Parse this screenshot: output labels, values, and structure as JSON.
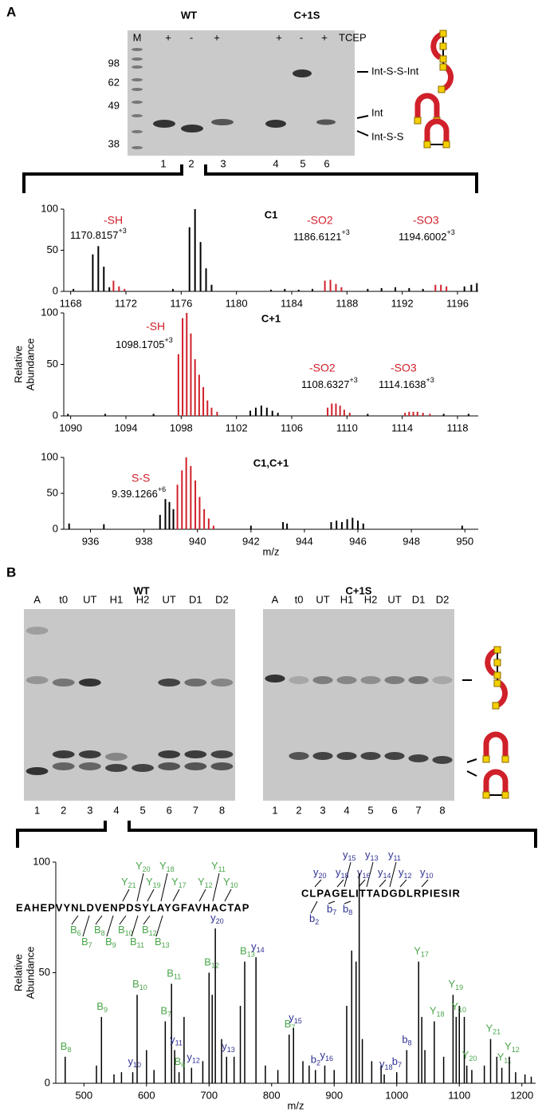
{
  "panel_a": {
    "label": "A",
    "gel": {
      "groups": [
        "WT",
        "C+1S"
      ],
      "lane_markers": [
        "M",
        "+",
        "-",
        "+",
        "+",
        "-",
        "+"
      ],
      "treatment": "TCEP",
      "mw_labels": [
        98,
        62,
        49,
        38
      ],
      "lane_numbers": [
        1,
        2,
        3,
        4,
        5,
        6
      ],
      "band_labels": [
        "Int-S-S-Int",
        "Int",
        "Int-S-S"
      ]
    }
  },
  "panel_b": {
    "label": "B",
    "gels": [
      {
        "title": "WT",
        "lanes": [
          "A",
          "t0",
          "UT",
          "H1",
          "H2",
          "UT",
          "D1",
          "D2"
        ],
        "lane_numbers": [
          1,
          2,
          3,
          4,
          5,
          6,
          7,
          8
        ]
      },
      {
        "title": "C+1S",
        "lanes": [
          "A",
          "t0",
          "UT",
          "H1",
          "H2",
          "UT",
          "D1",
          "D2"
        ],
        "lane_numbers": [
          1,
          2,
          3,
          4,
          5,
          6,
          7,
          8
        ]
      }
    ],
    "sequences": [
      {
        "text": "EAHEPVYNLDVENPDSYLAYGFAVHACTAP",
        "color": "#4aa64a",
        "fragments": [
          {
            "letter": "Y",
            "sub": "20"
          },
          {
            "letter": "Y",
            "sub": "18"
          },
          {
            "letter": "Y",
            "sub": "11"
          },
          {
            "letter": "Y",
            "sub": "21"
          },
          {
            "letter": "Y",
            "sub": "19"
          },
          {
            "letter": "Y",
            "sub": "17"
          },
          {
            "letter": "Y",
            "sub": "12"
          },
          {
            "letter": "Y",
            "sub": "10"
          },
          {
            "letter": "B",
            "sub": "6"
          },
          {
            "letter": "B",
            "sub": "8"
          },
          {
            "letter": "B",
            "sub": "10"
          },
          {
            "letter": "B",
            "sub": "12"
          },
          {
            "letter": "B",
            "sub": "7"
          },
          {
            "letter": "B",
            "sub": "9"
          },
          {
            "letter": "B",
            "sub": "11"
          },
          {
            "letter": "B",
            "sub": "13"
          }
        ]
      },
      {
        "text": "CLPAGELITTADGDLRPIESIR",
        "color": "#2e3192",
        "fragments": [
          {
            "letter": "y",
            "sub": "15"
          },
          {
            "letter": "y",
            "sub": "13"
          },
          {
            "letter": "y",
            "sub": "11"
          },
          {
            "letter": "y",
            "sub": "20"
          },
          {
            "letter": "y",
            "sub": "18"
          },
          {
            "letter": "y",
            "sub": "16"
          },
          {
            "letter": "y",
            "sub": "14"
          },
          {
            "letter": "y",
            "sub": "12"
          },
          {
            "letter": "y",
            "sub": "10"
          },
          {
            "letter": "b",
            "sub": "2"
          },
          {
            "letter": "b",
            "sub": "7"
          },
          {
            "letter": "b",
            "sub": "8"
          }
        ]
      }
    ]
  },
  "chart_data": [
    {
      "type": "spectrum",
      "title": "C1",
      "xlim": [
        1167.5,
        1197.5
      ],
      "xticks": [
        1168,
        1172,
        1176,
        1180,
        1184,
        1188,
        1192,
        1196
      ],
      "ylim": [
        0,
        100
      ],
      "yticks": [
        0,
        50,
        100
      ],
      "series": [
        {
          "color": "#000000",
          "x": [
            1168.2,
            1169.6,
            1170.0,
            1170.4,
            1170.8,
            1175.4,
            1176.6,
            1177.0,
            1177.4,
            1177.8,
            1178.2,
            1182.5,
            1183.5,
            1184.5,
            1185.5,
            1189.5,
            1190.5,
            1191.5,
            1192.5,
            1193.5,
            1196.5,
            1197.0,
            1197.4
          ],
          "values": [
            3,
            45,
            55,
            30,
            5,
            3,
            78,
            100,
            60,
            28,
            8,
            2,
            3,
            2,
            3,
            3,
            4,
            5,
            4,
            3,
            6,
            8,
            10
          ]
        },
        {
          "color": "#d0202a",
          "x": [
            1171.1,
            1171.5,
            1171.9,
            1186.4,
            1186.8,
            1187.2,
            1187.6,
            1194.4,
            1194.8,
            1195.2
          ],
          "values": [
            13,
            6,
            3,
            13,
            14,
            9,
            5,
            8,
            8,
            6
          ]
        }
      ],
      "annotations": [
        {
          "label": "-SH",
          "mass": "1170.8157",
          "charge": "+3"
        },
        {
          "label": "-SO2",
          "mass": "1186.6121",
          "charge": "+3"
        },
        {
          "label": "-SO3",
          "mass": "1194.6002",
          "charge": "+3"
        }
      ]
    },
    {
      "type": "spectrum",
      "title": "C+1",
      "ylabel": [
        "Relative",
        "Abundance"
      ],
      "xlim": [
        1089.5,
        1119.5
      ],
      "xticks": [
        1090,
        1094,
        1098,
        1102,
        1106,
        1110,
        1114,
        1118
      ],
      "ylim": [
        0,
        100
      ],
      "yticks": [
        0,
        50,
        100
      ],
      "series": [
        {
          "color": "#000000",
          "x": [
            1089.8,
            1092.5,
            1096.0,
            1103.0,
            1103.4,
            1103.8,
            1104.2,
            1104.6,
            1105.0,
            1111.5,
            1117.0,
            1118.8
          ],
          "values": [
            2,
            2,
            2,
            5,
            8,
            10,
            8,
            5,
            3,
            2,
            2,
            2
          ]
        },
        {
          "color": "#d0202a",
          "x": [
            1097.8,
            1098.1,
            1098.4,
            1098.7,
            1099.0,
            1099.3,
            1099.6,
            1099.9,
            1100.2,
            1100.6,
            1108.6,
            1108.9,
            1109.2,
            1109.5,
            1109.8,
            1110.2,
            1114.2,
            1114.5,
            1114.8,
            1115.1,
            1115.5,
            1116.0
          ],
          "values": [
            60,
            95,
            100,
            80,
            55,
            40,
            28,
            15,
            8,
            4,
            8,
            12,
            12,
            10,
            6,
            3,
            3,
            4,
            4,
            4,
            3,
            2
          ]
        }
      ],
      "annotations": [
        {
          "label": "-SH",
          "mass": "1098.1705",
          "charge": "+3"
        },
        {
          "label": "-SO2",
          "mass": "1108.6327",
          "charge": "+3"
        },
        {
          "label": "-SO3",
          "mass": "1114.1638",
          "charge": "+3"
        }
      ]
    },
    {
      "type": "spectrum",
      "title": "C1,C+1",
      "xlabel": "m/z",
      "xlim": [
        935,
        950.5
      ],
      "xticks": [
        936,
        938,
        940,
        942,
        944,
        946,
        948,
        950
      ],
      "ylim": [
        0,
        100
      ],
      "yticks": [
        0,
        50,
        100
      ],
      "series": [
        {
          "color": "#000000",
          "x": [
            935.2,
            936.5,
            938.6,
            938.8,
            938.95,
            939.1,
            942.0,
            943.2,
            943.35,
            945.0,
            945.2,
            945.4,
            945.6,
            945.8,
            946.0,
            946.2,
            949.9
          ],
          "values": [
            8,
            7,
            20,
            42,
            38,
            28,
            5,
            10,
            8,
            10,
            12,
            10,
            14,
            16,
            12,
            8,
            5
          ]
        },
        {
          "color": "#d0202a",
          "x": [
            939.25,
            939.42,
            939.58,
            939.75,
            939.92,
            940.08,
            940.25,
            940.42,
            940.6
          ],
          "values": [
            62,
            82,
            100,
            88,
            68,
            45,
            28,
            15,
            5
          ]
        }
      ],
      "annotations": [
        {
          "label": "S-S",
          "mass": "9.39.1266",
          "charge": "+6"
        }
      ]
    },
    {
      "type": "spectrum",
      "ylabel": [
        "Relative",
        "Abundance"
      ],
      "xlabel": "m/z",
      "xlim": [
        455,
        1222
      ],
      "xticks": [
        500,
        600,
        700,
        800,
        900,
        1000,
        1100,
        1200
      ],
      "ylim": [
        0,
        100
      ],
      "yticks": [
        0,
        50,
        100
      ],
      "series": [
        {
          "color": "#000000",
          "x": [
            520,
            548,
            560,
            600,
            612,
            660,
            690,
            705,
            720,
            740,
            750,
            790,
            810,
            850,
            860,
            900,
            920,
            928,
            935,
            940,
            945,
            960,
            975,
            1040,
            1045,
            1075,
            1100,
            1108,
            1120,
            1140,
            1160,
            1190,
            1205,
            1215
          ],
          "values": [
            8,
            4,
            5,
            15,
            6,
            30,
            10,
            40,
            20,
            12,
            35,
            8,
            6,
            10,
            8,
            6,
            35,
            60,
            55,
            95,
            20,
            10,
            8,
            30,
            15,
            12,
            35,
            30,
            6,
            8,
            12,
            5,
            4,
            3
          ]
        },
        {
          "color": "#000000",
          "label_color": "#4aa64a",
          "x": [
            470,
            528,
            585,
            630,
            640,
            652,
            700,
            757,
            828,
            1035,
            1060,
            1090,
            1095,
            1112,
            1150,
            1168,
            1180
          ],
          "values": [
            12,
            30,
            40,
            28,
            45,
            5,
            50,
            55,
            22,
            55,
            28,
            40,
            30,
            8,
            20,
            7,
            12
          ],
          "labels": [
            {
              "letter": "B",
              "sub": "8"
            },
            {
              "letter": "B",
              "sub": "9"
            },
            {
              "letter": "B",
              "sub": "10"
            },
            {
              "letter": "B",
              "sub": "7"
            },
            {
              "letter": "B",
              "sub": "11"
            },
            {
              "letter": "B",
              "sub": "6"
            },
            {
              "letter": "B",
              "sub": "12"
            },
            {
              "letter": "B",
              "sub": "13"
            },
            {
              "letter": "B",
              "sub": "7"
            },
            {
              "letter": "Y",
              "sub": "17"
            },
            {
              "letter": "Y",
              "sub": "18"
            },
            {
              "letter": "Y",
              "sub": "19"
            },
            {
              "letter": "Y",
              "sub": "10"
            },
            {
              "letter": "Y",
              "sub": "20"
            },
            {
              "letter": "Y",
              "sub": "21"
            },
            {
              "letter": "Y",
              "sub": "11"
            },
            {
              "letter": "Y",
              "sub": "12"
            }
          ]
        },
        {
          "color": "#000000",
          "label_color": "#2e3192",
          "x": [
            578,
            645,
            672,
            710,
            728,
            775,
            835,
            870,
            885,
            980,
            1000,
            1016
          ],
          "values": [
            5,
            15,
            7,
            70,
            12,
            57,
            25,
            6,
            8,
            4,
            5,
            15
          ],
          "labels": [
            {
              "letter": "y",
              "sub": "10"
            },
            {
              "letter": "y",
              "sub": "11"
            },
            {
              "letter": "y",
              "sub": "12"
            },
            {
              "letter": "y",
              "sub": "20"
            },
            {
              "letter": "y",
              "sub": "13"
            },
            {
              "letter": "y",
              "sub": "14"
            },
            {
              "letter": "y",
              "sub": "15"
            },
            {
              "letter": "b",
              "sub": "2"
            },
            {
              "letter": "y",
              "sub": "16"
            },
            {
              "letter": "y",
              "sub": "18"
            },
            {
              "letter": "b",
              "sub": "7"
            },
            {
              "letter": "b",
              "sub": "8"
            }
          ]
        }
      ]
    }
  ]
}
